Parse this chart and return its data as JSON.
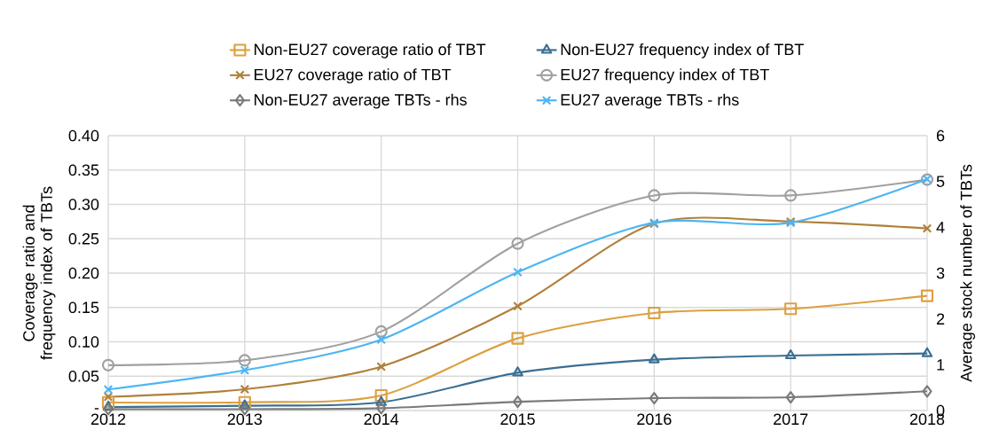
{
  "chart_data": {
    "type": "line",
    "categories": [
      "2012",
      "2013",
      "2014",
      "2015",
      "2016",
      "2017",
      "2018"
    ],
    "ylabel": "Coverage ratio and frequency index of TBTs",
    "y2label": "Average stock number of TBTs",
    "ylim": [
      0,
      0.4
    ],
    "yticks": [
      {
        "value": 0,
        "label": "-"
      },
      {
        "value": 0.05,
        "label": "0.05"
      },
      {
        "value": 0.1,
        "label": "0.10"
      },
      {
        "value": 0.15,
        "label": "0.15"
      },
      {
        "value": 0.2,
        "label": "0.20"
      },
      {
        "value": 0.25,
        "label": "0.25"
      },
      {
        "value": 0.3,
        "label": "0.30"
      },
      {
        "value": 0.35,
        "label": "0.35"
      },
      {
        "value": 0.4,
        "label": "0.40"
      }
    ],
    "y2lim": [
      0,
      6
    ],
    "y2ticks": [
      0,
      1,
      2,
      3,
      4,
      5,
      6
    ],
    "grid": true,
    "legend": "top",
    "line_style": "solid",
    "series": [
      {
        "name": "Non-EU27 coverage ratio of TBT",
        "color": "#dca040",
        "marker": "square",
        "values": [
          0.012,
          0.012,
          0.022,
          0.105,
          0.142,
          0.148,
          0.167
        ]
      },
      {
        "name": "Non-EU27 frequency index of TBT",
        "color": "#3a6f92",
        "marker": "triangle",
        "values": [
          0.005,
          0.007,
          0.012,
          0.055,
          0.074,
          0.08,
          0.083
        ]
      },
      {
        "name": "EU27 coverage ratio of TBT",
        "color": "#b0803a",
        "marker": "cross",
        "values": [
          0.02,
          0.031,
          0.064,
          0.152,
          0.272,
          0.275,
          0.265
        ]
      },
      {
        "name": "EU27 frequency index of TBT",
        "color": "#a0a0a0",
        "marker": "circle",
        "values": [
          0.066,
          0.073,
          0.115,
          0.243,
          0.313,
          0.313,
          0.336
        ]
      },
      {
        "name": "Non-EU27 average TBTs - rhs",
        "color": "#7a7a7a",
        "marker": "diamond",
        "axis": "y2",
        "values": [
          0.03,
          0.03,
          0.05,
          0.19,
          0.27,
          0.29,
          0.42
        ]
      },
      {
        "name": "EU27 average TBTs - rhs",
        "color": "#4db5f2",
        "marker": "cross",
        "axis": "y2",
        "values": [
          0.46,
          0.88,
          1.55,
          3.02,
          4.1,
          4.1,
          5.05
        ]
      }
    ]
  }
}
